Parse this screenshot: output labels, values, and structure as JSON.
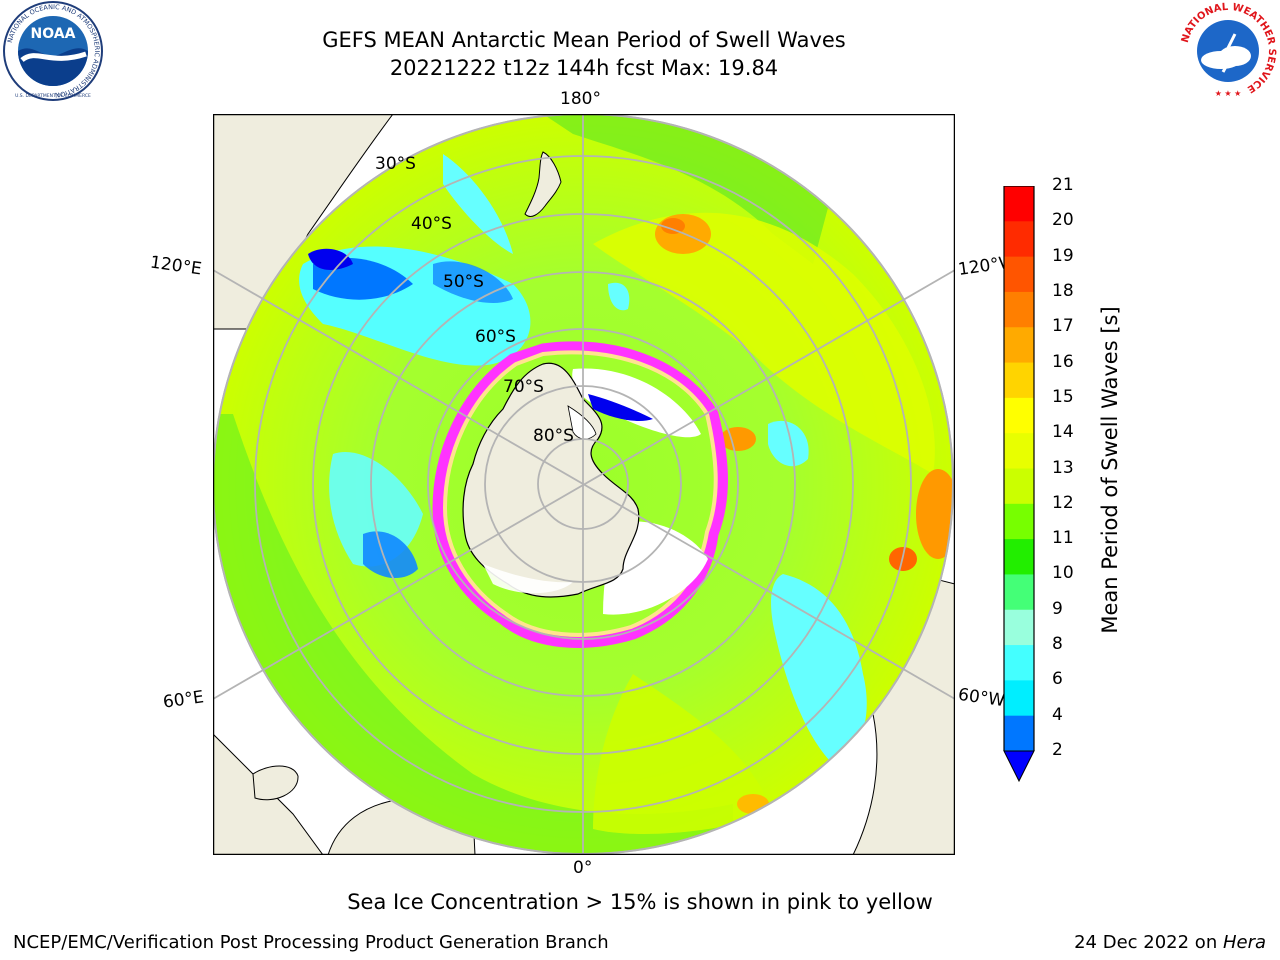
{
  "title": {
    "line1": "GEFS MEAN Antarctic Mean Period of Swell Waves",
    "line2": "20221222 t12z 144h fcst   Max: 19.84"
  },
  "map": {
    "projection": "south-polar-stereographic",
    "longitude_labels": {
      "top": "180°",
      "bottom": "0°",
      "upper_left": "120°E",
      "lower_left": "60°E",
      "upper_right": "120°W",
      "lower_right": "60°W"
    },
    "latitude_labels": [
      "30°S",
      "40°S",
      "50°S",
      "60°S",
      "70°S",
      "80°S"
    ],
    "colors": {
      "land": "#efedde",
      "coastline": "#000000",
      "graticule": "#b4b4b4",
      "ice_edge": [
        "#ff33ff",
        "#ff99dd",
        "#ffe38f",
        "#ffffff"
      ]
    }
  },
  "colorbar": {
    "label": "Mean Period of Swell Waves [s]",
    "ticks": [
      "21",
      "20",
      "19",
      "18",
      "17",
      "16",
      "15",
      "14",
      "13",
      "12",
      "11",
      "10",
      "9",
      "8",
      "6",
      "4",
      "2"
    ],
    "colors_top_to_bottom": [
      "#ff0000",
      "#ff2b00",
      "#ff5500",
      "#ff7f00",
      "#ffaa00",
      "#ffd400",
      "#ffff00",
      "#e8ff00",
      "#cbff00",
      "#77ff00",
      "#22ee00",
      "#44ff77",
      "#99ffdd",
      "#44ffff",
      "#00eeff",
      "#0077ff"
    ],
    "under_color": "#0000ff"
  },
  "caption": "Sea Ice Concentration > 15% is shown in pink to yellow",
  "footer": {
    "left": "NCEP/EMC/Verification Post Processing Product Generation Branch",
    "right_prefix": "24 Dec 2022 on ",
    "right_machine": "Hera"
  },
  "logos": {
    "left": {
      "text": "NOAA",
      "ring": "NATIONAL OCEANIC AND ATMOSPHERIC ADMINISTRATION",
      "sub": "U.S. DEPARTMENT OF COMMERCE"
    },
    "right": {
      "ring": "NATIONAL WEATHER SERVICE"
    }
  }
}
